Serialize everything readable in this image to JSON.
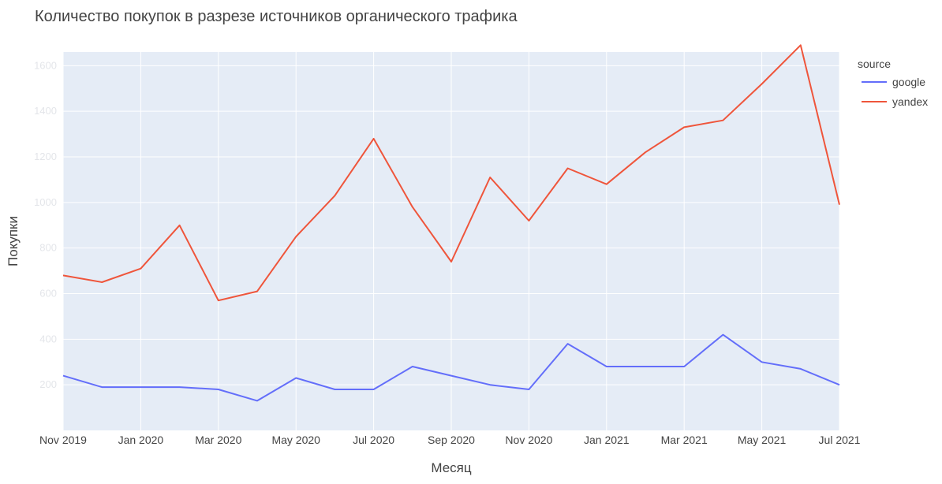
{
  "chart_data": {
    "type": "line",
    "title": "Количество покупок в разрезе источников органического трафика",
    "xlabel": "Месяц",
    "ylabel": "Покупки",
    "x": [
      "Nov 2019",
      "Dec 2019",
      "Jan 2020",
      "Feb 2020",
      "Mar 2020",
      "Apr 2020",
      "May 2020",
      "Jun 2020",
      "Jul 2020",
      "Aug 2020",
      "Sep 2020",
      "Oct 2020",
      "Nov 2020",
      "Dec 2020",
      "Jan 2021",
      "Feb 2021",
      "Mar 2021",
      "Apr 2021",
      "May 2021",
      "Jun 2021",
      "Jul 2021"
    ],
    "x_tick_labels": [
      "Nov 2019",
      "Jan 2020",
      "Mar 2020",
      "May 2020",
      "Jul 2020",
      "Sep 2020",
      "Nov 2020",
      "Jan 2021",
      "Mar 2021",
      "May 2021",
      "Jul 2021"
    ],
    "y_ticks": [
      200,
      400,
      600,
      800,
      1000,
      1200,
      1400,
      1600
    ],
    "ylim": [
      0,
      1660
    ],
    "grid": true,
    "legend": {
      "title": "source",
      "placement": "top-right"
    },
    "series": [
      {
        "name": "google",
        "color": "#636efa",
        "values": [
          240,
          190,
          190,
          190,
          180,
          130,
          230,
          180,
          180,
          280,
          240,
          200,
          180,
          380,
          280,
          280,
          280,
          420,
          300,
          270,
          200
        ]
      },
      {
        "name": "yandex",
        "color": "#ef553b",
        "values": [
          680,
          650,
          710,
          900,
          570,
          610,
          850,
          1030,
          1280,
          980,
          740,
          1110,
          920,
          1150,
          1080,
          1220,
          1330,
          1360,
          1520,
          1690,
          990
        ]
      }
    ]
  }
}
